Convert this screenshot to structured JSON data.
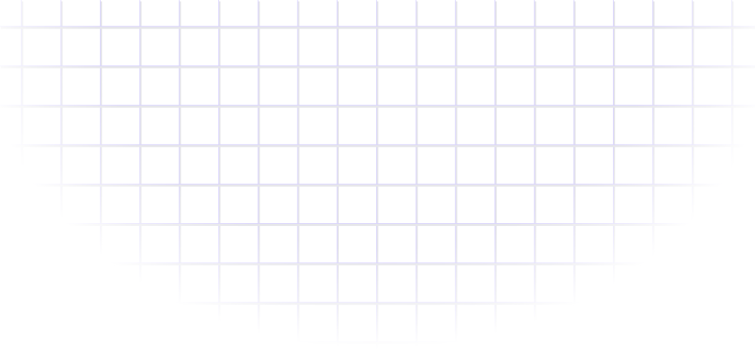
{
  "background": {
    "pattern": "grid",
    "line_color": "#d8d2ff",
    "shadow_color": "#e6e6ea"
  }
}
